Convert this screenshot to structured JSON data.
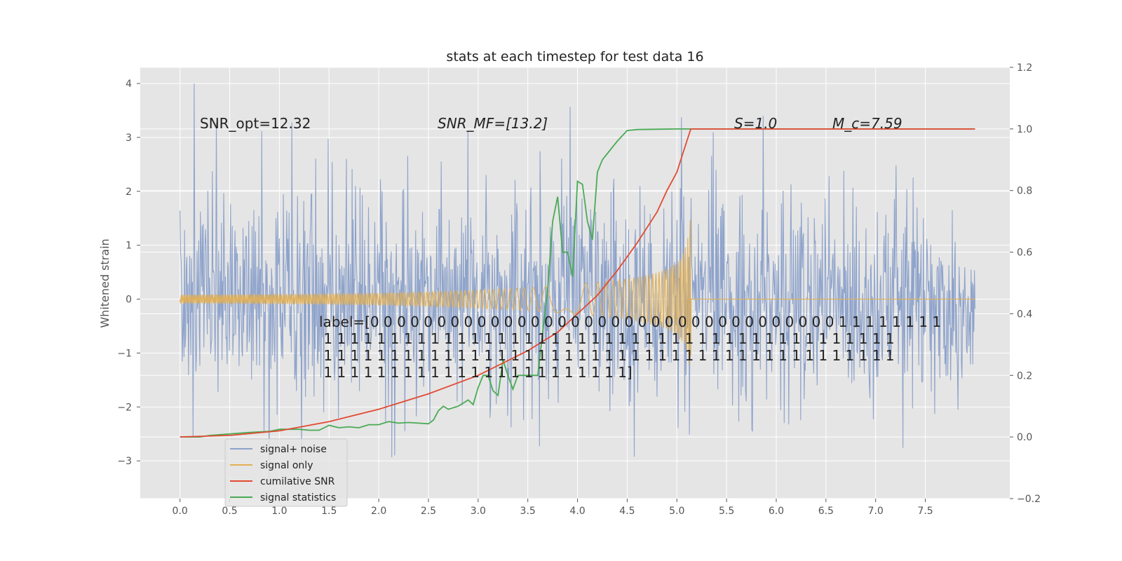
{
  "chart_data": {
    "type": "line",
    "title": "stats at each timestep for test data 16",
    "ylabel": "Whitened strain",
    "xlabel": "",
    "xlim": [
      -0.4,
      8.35
    ],
    "ylim": [
      -3.7,
      4.3
    ],
    "y2lim": [
      -0.2,
      1.2
    ],
    "grid": true,
    "x_ticks": [
      0.0,
      0.5,
      1.0,
      1.5,
      2.0,
      2.5,
      3.0,
      3.5,
      4.0,
      4.5,
      5.0,
      5.5,
      6.0,
      6.5,
      7.0,
      7.5
    ],
    "x_tick_labels": [
      "0.0",
      "0.5",
      "1.0",
      "1.5",
      "2.0",
      "2.5",
      "3.0",
      "3.5",
      "4.0",
      "4.5",
      "5.0",
      "5.5",
      "6.0",
      "6.5",
      "7.0",
      "7.5"
    ],
    "y_ticks": [
      -3,
      -2,
      -1,
      0,
      1,
      2,
      3,
      4
    ],
    "y_tick_labels": [
      "−3",
      "−2",
      "−1",
      "0",
      "1",
      "2",
      "3",
      "4"
    ],
    "y2_ticks": [
      -0.2,
      0.0,
      0.2,
      0.4,
      0.6,
      0.8,
      1.0,
      1.2
    ],
    "y2_tick_labels": [
      "−0.2",
      "0.0",
      "0.2",
      "0.4",
      "0.6",
      "0.8",
      "1.0",
      "1.2"
    ],
    "signal_end_time": 5.14,
    "series": [
      {
        "name": "signal+ noise",
        "color": "#8ea3cb",
        "axis": "left",
        "note": "noisy strain, approx amplitude 1.2 with spikes up to 4.0"
      },
      {
        "name": "signal only",
        "color": "#e2b056",
        "axis": "left",
        "note": "chirp growing to amplitude 1.5 at t=5.14, zero after"
      },
      {
        "name": "cumilative SNR",
        "color": "#e24a33",
        "axis": "right",
        "x": [
          0.0,
          0.5,
          1.0,
          1.5,
          2.0,
          2.5,
          3.0,
          3.5,
          3.8,
          4.0,
          4.2,
          4.4,
          4.6,
          4.8,
          4.9,
          5.0,
          5.05,
          5.1,
          5.14,
          8.0
        ],
        "y": [
          0.0,
          0.005,
          0.02,
          0.05,
          0.09,
          0.14,
          0.2,
          0.28,
          0.34,
          0.4,
          0.46,
          0.54,
          0.63,
          0.73,
          0.8,
          0.86,
          0.91,
          0.96,
          1.0,
          1.0
        ]
      },
      {
        "name": "signal statistics",
        "color": "#4aaa55",
        "axis": "right",
        "x": [
          0.0,
          0.2,
          0.3,
          0.7,
          0.9,
          1.0,
          1.2,
          1.3,
          1.4,
          1.5,
          1.6,
          1.7,
          1.8,
          1.9,
          2.0,
          2.1,
          2.2,
          2.3,
          2.4,
          2.5,
          2.55,
          2.6,
          2.65,
          2.7,
          2.8,
          2.9,
          2.95,
          3.0,
          3.05,
          3.1,
          3.15,
          3.2,
          3.25,
          3.3,
          3.35,
          3.4,
          3.45,
          3.5,
          3.55,
          3.6,
          3.7,
          3.75,
          3.8,
          3.85,
          3.9,
          3.95,
          4.0,
          4.05,
          4.1,
          4.15,
          4.2,
          4.25,
          4.3,
          4.35,
          4.4,
          4.5,
          4.6,
          4.8,
          5.0,
          5.14,
          8.0
        ],
        "y": [
          0.0,
          0.0,
          0.005,
          0.015,
          0.018,
          0.025,
          0.025,
          0.022,
          0.022,
          0.038,
          0.03,
          0.033,
          0.03,
          0.04,
          0.04,
          0.05,
          0.045,
          0.047,
          0.045,
          0.043,
          0.055,
          0.085,
          0.1,
          0.09,
          0.1,
          0.12,
          0.105,
          0.16,
          0.2,
          0.2,
          0.15,
          0.135,
          0.25,
          0.2,
          0.155,
          0.2,
          0.2,
          0.2,
          0.2,
          0.2,
          0.48,
          0.7,
          0.78,
          0.6,
          0.6,
          0.52,
          0.83,
          0.82,
          0.7,
          0.64,
          0.86,
          0.9,
          0.92,
          0.94,
          0.96,
          0.995,
          0.998,
          0.999,
          1.0,
          1.0,
          1.0
        ]
      }
    ],
    "annotations": [
      "SNR_opt=12.32",
      "SNR_MF=[13.2]",
      "S=1.0",
      "M_c=7.59"
    ],
    "label_text_lines": [
      "label=[0 0 0 0 0 0 0 0 0 0 0 0 0 0 0 0 0 0 0 0 0 0 0 0 0 0 0 0 0 0 0 0 0 0 0 1 1 1 1 1 1 1 1",
      " 1 1 1 1 1 1 1 1 1 1 1 1 1 1 1 1 1 1 1 1 1 1 1 1 1 1 1 1 1 1 1 1 1 1 1 1 1 1 1 1 1 1 1",
      " 1 1 1 1 1 1 1 1 1 1 1 1 1 1 1 1 1 1 1 1 1 1 1 1 1 1 1 1 1 1 1 1 1 1 1 1 1 1 1 1 1 1 1",
      " 1 1 1 1 1 1 1 1 1 1 1 1 1 1 1 1 1 1 1 1 1 1 1]"
    ],
    "legend_location": "lower-left"
  }
}
